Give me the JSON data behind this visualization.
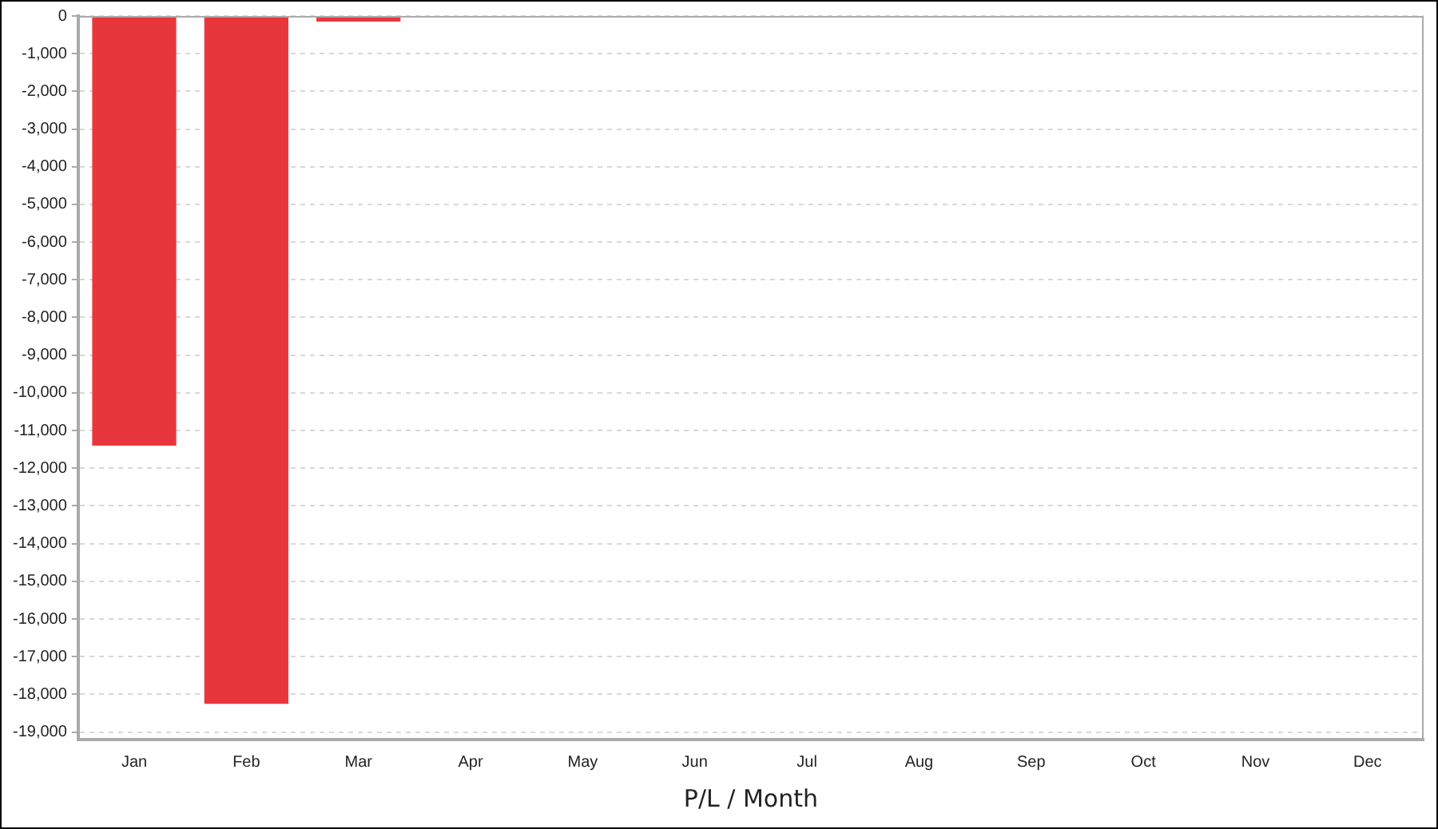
{
  "chart_data": {
    "type": "bar",
    "xlabel": "P/L / Month",
    "categories": [
      "Jan",
      "Feb",
      "Mar",
      "Apr",
      "May",
      "Jun",
      "Jul",
      "Aug",
      "Sep",
      "Oct",
      "Nov",
      "Dec"
    ],
    "values": [
      -11400,
      -18250,
      -150,
      null,
      null,
      null,
      null,
      null,
      null,
      null,
      null,
      null
    ],
    "color": "#e8373c",
    "ylim": [
      -19200,
      0
    ],
    "yticks": [
      0,
      {
        "value": -1000,
        "label": "-1,000"
      },
      {
        "value": -2000,
        "label": "-2,000"
      },
      {
        "value": -3000,
        "label": "-3,000"
      },
      {
        "value": -4000,
        "label": "-4,000"
      },
      {
        "value": -5000,
        "label": "-5,000"
      },
      {
        "value": -6000,
        "label": "-6,000"
      },
      {
        "value": -7000,
        "label": "-7,000"
      },
      {
        "value": -8000,
        "label": "-8,000"
      },
      {
        "value": -9000,
        "label": "-9,000"
      },
      {
        "value": -10000,
        "label": "-10,000"
      },
      {
        "value": -11000,
        "label": "-11,000"
      },
      {
        "value": -12000,
        "label": "-12,000"
      },
      {
        "value": -13000,
        "label": "-13,000"
      },
      {
        "value": -14000,
        "label": "-14,000"
      },
      {
        "value": -15000,
        "label": "-15,000"
      },
      {
        "value": -16000,
        "label": "-16,000"
      },
      {
        "value": -17000,
        "label": "-17,000"
      },
      {
        "value": -18000,
        "label": "-18,000"
      },
      {
        "value": -19000,
        "label": "-19,000"
      }
    ],
    "grid": "y",
    "legend": false
  }
}
